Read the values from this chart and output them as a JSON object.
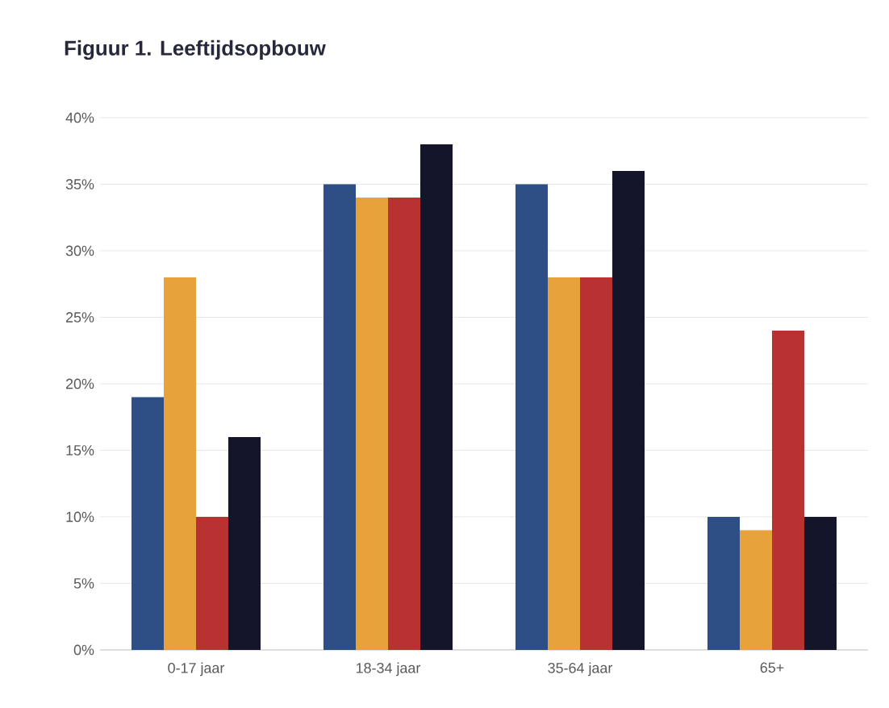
{
  "chart_data": {
    "type": "bar",
    "title": "Figuur 1. Leeftijdsopbouw",
    "categories": [
      "0-17 jaar",
      "18-34 jaar",
      "35-64 jaar",
      "65+"
    ],
    "series": [
      {
        "color": "#2e4f86",
        "values": [
          19,
          35,
          35,
          10
        ]
      },
      {
        "color": "#e8a23c",
        "values": [
          28,
          34,
          28,
          9
        ]
      },
      {
        "color": "#b83232",
        "values": [
          10,
          34,
          28,
          24
        ]
      },
      {
        "color": "#14142a",
        "values": [
          16,
          38,
          36,
          10
        ]
      }
    ],
    "ylim": [
      0,
      40
    ],
    "yticks": [
      {
        "value": 0,
        "label": "0%"
      },
      {
        "value": 5,
        "label": "5%"
      },
      {
        "value": 10,
        "label": "10%"
      },
      {
        "value": 15,
        "label": "15%"
      },
      {
        "value": 20,
        "label": "20%"
      },
      {
        "value": 25,
        "label": "25%"
      },
      {
        "value": 30,
        "label": "30%"
      },
      {
        "value": 35,
        "label": "35%"
      },
      {
        "value": 40,
        "label": "40%"
      }
    ],
    "grid": "y"
  }
}
